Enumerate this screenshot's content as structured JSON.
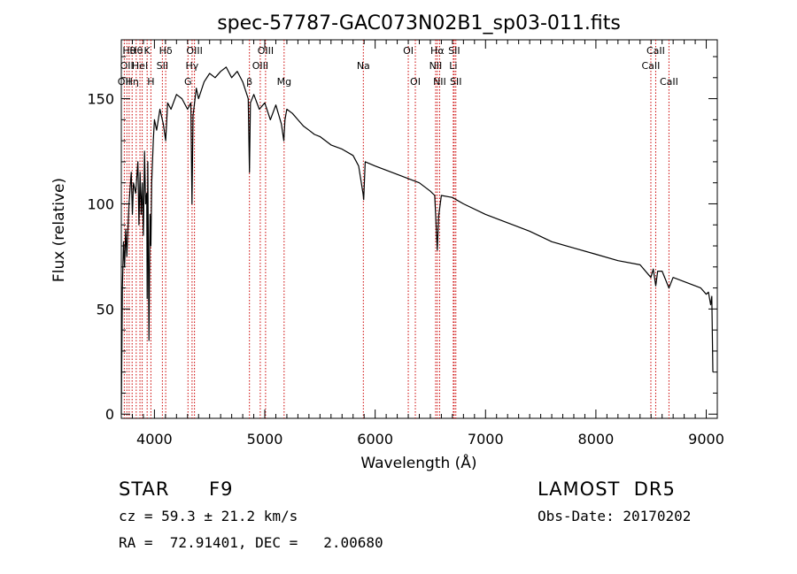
{
  "chart_data": {
    "type": "line",
    "title": "spec-57787-GAC073N02B1_sp03-011.fits",
    "xlabel": "Wavelength (Å)",
    "ylabel": "Flux (relative)",
    "xlim": [
      3700,
      9100
    ],
    "ylim": [
      -2,
      178
    ],
    "xticks": [
      4000,
      5000,
      6000,
      7000,
      8000,
      9000
    ],
    "yticks": [
      0,
      50,
      100,
      150
    ],
    "grid": false,
    "series": [
      {
        "x": [
          3700,
          3710,
          3720,
          3730,
          3740,
          3750,
          3770,
          3790,
          3800,
          3810,
          3830,
          3850,
          3860,
          3870,
          3880,
          3890,
          3900,
          3910,
          3920,
          3930,
          3934,
          3940,
          3950,
          3960,
          3968,
          3975,
          3990,
          4000,
          4020,
          4050,
          4080,
          4102,
          4120,
          4150,
          4200,
          4250,
          4300,
          4330,
          4340,
          4350,
          4380,
          4400,
          4450,
          4500,
          4550,
          4600,
          4650,
          4700,
          4750,
          4800,
          4850,
          4861,
          4870,
          4900,
          4950,
          5000,
          5050,
          5100,
          5150,
          5172,
          5183,
          5200,
          5250,
          5300,
          5350,
          5400,
          5450,
          5500,
          5600,
          5700,
          5800,
          5850,
          5890,
          5896,
          5910,
          6000,
          6100,
          6200,
          6300,
          6400,
          6500,
          6540,
          6563,
          6575,
          6600,
          6700,
          6800,
          7000,
          7200,
          7400,
          7600,
          7800,
          8000,
          8200,
          8400,
          8498,
          8520,
          8542,
          8560,
          8600,
          8662,
          8700,
          8800,
          8900,
          8950,
          9000,
          9020,
          9040,
          9050,
          9060
        ],
        "values": [
          0,
          60,
          82,
          70,
          88,
          75,
          100,
          115,
          95,
          110,
          105,
          120,
          90,
          115,
          95,
          110,
          85,
          125,
          100,
          105,
          55,
          120,
          35,
          95,
          80,
          110,
          130,
          140,
          135,
          145,
          138,
          130,
          148,
          145,
          152,
          150,
          145,
          148,
          100,
          142,
          155,
          150,
          158,
          162,
          160,
          163,
          165,
          160,
          163,
          158,
          150,
          115,
          148,
          152,
          145,
          148,
          140,
          147,
          138,
          130,
          140,
          145,
          143,
          140,
          137,
          135,
          133,
          132,
          128,
          126,
          123,
          118,
          105,
          102,
          120,
          118,
          116,
          114,
          112,
          110,
          106,
          104,
          78,
          94,
          104,
          103,
          100,
          95,
          91,
          87,
          82,
          79,
          76,
          73,
          71,
          65,
          69,
          61,
          68,
          68,
          60,
          65,
          63,
          61,
          60,
          57,
          58,
          52,
          56,
          20
        ]
      }
    ],
    "lines": [
      {
        "wave": 3727,
        "label": "OII",
        "row": 2
      },
      {
        "wave": 3750,
        "label": "OII",
        "row": 1
      },
      {
        "wave": 3771,
        "label": "Hθ",
        "row": 0
      },
      {
        "wave": 3798,
        "label": "Hη",
        "row": 2
      },
      {
        "wave": 3835,
        "label": "Hθ",
        "row": 0
      },
      {
        "wave": 3869,
        "label": "HeI",
        "row": 1
      },
      {
        "wave": 3889,
        "label": "",
        "row": 0
      },
      {
        "wave": 3934,
        "label": "K",
        "row": 0
      },
      {
        "wave": 3968,
        "label": "H",
        "row": 2
      },
      {
        "wave": 4072,
        "label": "SII",
        "row": 1
      },
      {
        "wave": 4102,
        "label": "Hδ",
        "row": 0
      },
      {
        "wave": 4304,
        "label": "G",
        "row": 2
      },
      {
        "wave": 4341,
        "label": "Hγ",
        "row": 1
      },
      {
        "wave": 4363,
        "label": "OIII",
        "row": 0
      },
      {
        "wave": 4861,
        "label": "β",
        "row": 2
      },
      {
        "wave": 4959,
        "label": "OIII",
        "row": 1
      },
      {
        "wave": 5007,
        "label": "OIII",
        "row": 0
      },
      {
        "wave": 5175,
        "label": "Mg",
        "row": 2
      },
      {
        "wave": 5893,
        "label": "Na",
        "row": 1
      },
      {
        "wave": 6300,
        "label": "OI",
        "row": 0
      },
      {
        "wave": 6364,
        "label": "OI",
        "row": 2
      },
      {
        "wave": 6548,
        "label": "NII",
        "row": 1
      },
      {
        "wave": 6563,
        "label": "Hα",
        "row": 0
      },
      {
        "wave": 6584,
        "label": "NII",
        "row": 2
      },
      {
        "wave": 6708,
        "label": "Li",
        "row": 1
      },
      {
        "wave": 6716,
        "label": "SII",
        "row": 0
      },
      {
        "wave": 6731,
        "label": "SII",
        "row": 2
      },
      {
        "wave": 8498,
        "label": "CaII",
        "row": 1
      },
      {
        "wave": 8542,
        "label": "CaII",
        "row": 0
      },
      {
        "wave": 8662,
        "label": "CaII",
        "row": 2
      }
    ],
    "colors": {
      "spectrum": "#000000",
      "line_marker": "#cc0000"
    }
  },
  "info": {
    "object_class": "STAR",
    "subclass": "F9",
    "survey": "LAMOST  DR5",
    "cz": "cz = 59.3 ± 21.2 km/s",
    "obs_date": "Obs-Date: 20170202",
    "coords": "RA =  72.91401, DEC =   2.00680"
  }
}
